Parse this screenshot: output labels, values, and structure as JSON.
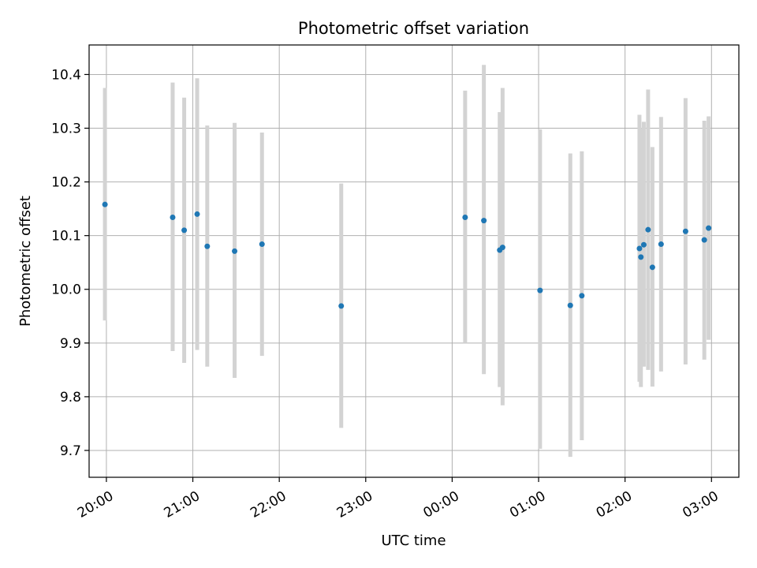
{
  "chart_data": {
    "type": "scatter",
    "title": "Photometric offset variation",
    "xlabel": "UTC time",
    "ylabel": "Photometric offset",
    "x_axis": {
      "kind": "time",
      "range": [
        "19:48",
        "03:19"
      ],
      "ticks": [
        "20:00",
        "21:00",
        "22:00",
        "23:00",
        "00:00",
        "01:00",
        "02:00",
        "03:00"
      ]
    },
    "y_axis": {
      "range": [
        9.65,
        10.455
      ],
      "ticks": [
        "9.7",
        "9.8",
        "9.9",
        "10.0",
        "10.1",
        "10.2",
        "10.3",
        "10.4"
      ]
    },
    "grid": true,
    "marker_color": "#1f77b4",
    "errorbar_color": "#d3d3d3",
    "points": [
      {
        "x": "19:59",
        "y": 10.158,
        "ylo": 9.942,
        "yhi": 10.375
      },
      {
        "x": "20:46",
        "y": 10.134,
        "ylo": 9.885,
        "yhi": 10.385
      },
      {
        "x": "20:54",
        "y": 10.11,
        "ylo": 9.863,
        "yhi": 10.357
      },
      {
        "x": "21:03",
        "y": 10.14,
        "ylo": 9.887,
        "yhi": 10.393
      },
      {
        "x": "21:10",
        "y": 10.08,
        "ylo": 9.856,
        "yhi": 10.305
      },
      {
        "x": "21:29",
        "y": 10.071,
        "ylo": 9.835,
        "yhi": 10.31
      },
      {
        "x": "21:48",
        "y": 10.084,
        "ylo": 9.876,
        "yhi": 10.292
      },
      {
        "x": "22:43",
        "y": 9.969,
        "ylo": 9.742,
        "yhi": 10.197
      },
      {
        "x": "00:09",
        "y": 10.134,
        "ylo": 9.9,
        "yhi": 10.37
      },
      {
        "x": "00:22",
        "y": 10.128,
        "ylo": 9.842,
        "yhi": 10.418
      },
      {
        "x": "00:33",
        "y": 10.073,
        "ylo": 9.818,
        "yhi": 10.33
      },
      {
        "x": "00:35",
        "y": 10.078,
        "ylo": 9.784,
        "yhi": 10.375
      },
      {
        "x": "01:01",
        "y": 9.998,
        "ylo": 9.703,
        "yhi": 10.298
      },
      {
        "x": "01:22",
        "y": 9.97,
        "ylo": 9.688,
        "yhi": 10.253
      },
      {
        "x": "01:30",
        "y": 9.988,
        "ylo": 9.719,
        "yhi": 10.257
      },
      {
        "x": "02:10",
        "y": 10.076,
        "ylo": 9.828,
        "yhi": 10.325
      },
      {
        "x": "02:11",
        "y": 10.06,
        "ylo": 9.818,
        "yhi": 10.3
      },
      {
        "x": "02:13",
        "y": 10.083,
        "ylo": 9.856,
        "yhi": 10.312
      },
      {
        "x": "02:16",
        "y": 10.111,
        "ylo": 9.85,
        "yhi": 10.372
      },
      {
        "x": "02:19",
        "y": 10.041,
        "ylo": 9.819,
        "yhi": 10.265
      },
      {
        "x": "02:25",
        "y": 10.084,
        "ylo": 9.847,
        "yhi": 10.321
      },
      {
        "x": "02:42",
        "y": 10.108,
        "ylo": 9.86,
        "yhi": 10.356
      },
      {
        "x": "02:55",
        "y": 10.092,
        "ylo": 9.869,
        "yhi": 10.314
      },
      {
        "x": "02:58",
        "y": 10.114,
        "ylo": 9.906,
        "yhi": 10.322
      }
    ]
  }
}
